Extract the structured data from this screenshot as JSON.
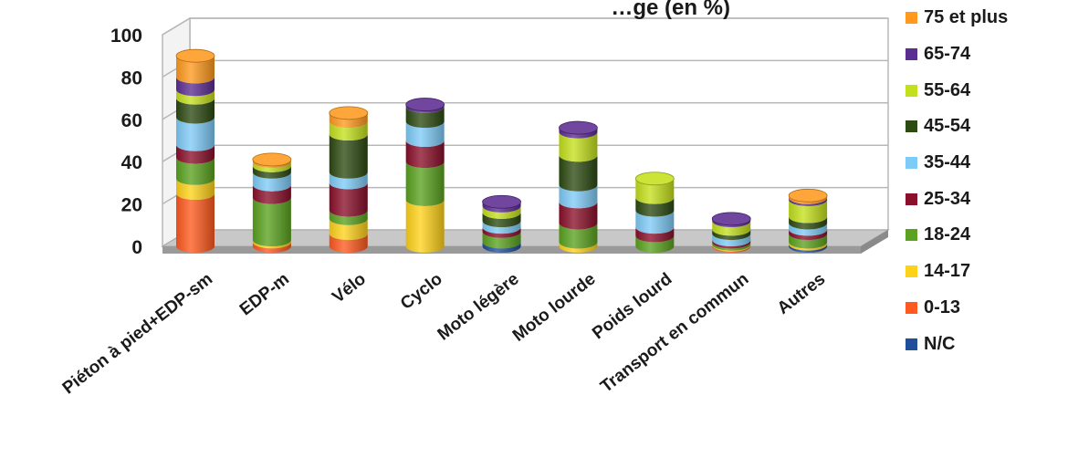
{
  "chart_data": {
    "type": "bar",
    "stacked": true,
    "style": "3d-cylinder",
    "title": "…ge (en %)",
    "ylim": [
      0,
      100
    ],
    "yticks": [
      "0",
      "20",
      "40",
      "60",
      "80",
      "100"
    ],
    "categories": [
      "Piéton à pied+EDP-sm",
      "EDP-m",
      "Vélo",
      "Cyclo",
      "Moto légère",
      "Moto lourde",
      "Poids lourd",
      "Transport en commun",
      "Autres"
    ],
    "series": [
      {
        "name": "N/C",
        "color": "#1f4e9b",
        "values": [
          0,
          0,
          0,
          0,
          2,
          0,
          0,
          0,
          1
        ]
      },
      {
        "name": "0-13",
        "color": "#ff5a1f",
        "values": [
          25,
          2,
          6,
          0,
          0,
          0,
          0,
          0.5,
          0
        ]
      },
      {
        "name": "14-17",
        "color": "#ffd21a",
        "values": [
          7,
          1,
          7,
          22,
          0,
          2,
          0,
          0.5,
          1
        ]
      },
      {
        "name": "18-24",
        "color": "#5aa21f",
        "values": [
          10,
          20,
          4,
          18,
          5,
          9,
          5,
          1,
          4
        ]
      },
      {
        "name": "25-34",
        "color": "#8a0f2a",
        "values": [
          6,
          6,
          13,
          10,
          2,
          10,
          4,
          1,
          2
        ]
      },
      {
        "name": "35-44",
        "color": "#7fcbf7",
        "values": [
          13,
          6,
          5,
          9,
          3,
          8,
          8,
          3,
          3
        ]
      },
      {
        "name": "45-54",
        "color": "#2d4a12",
        "values": [
          9,
          3,
          18,
          7,
          4,
          14,
          6,
          2,
          3
        ]
      },
      {
        "name": "55-64",
        "color": "#c4e01c",
        "values": [
          4,
          2,
          6,
          0,
          3,
          11,
          9,
          4,
          8
        ]
      },
      {
        "name": "65-74",
        "color": "#5c2d91",
        "values": [
          6,
          0,
          0,
          1,
          2,
          2,
          0,
          1,
          1
        ]
      },
      {
        "name": "75 et plus",
        "color": "#ff9a1f",
        "values": [
          10,
          1,
          4,
          0,
          0,
          0,
          0,
          0,
          1
        ]
      }
    ],
    "legend_position": "right",
    "grid": true
  }
}
